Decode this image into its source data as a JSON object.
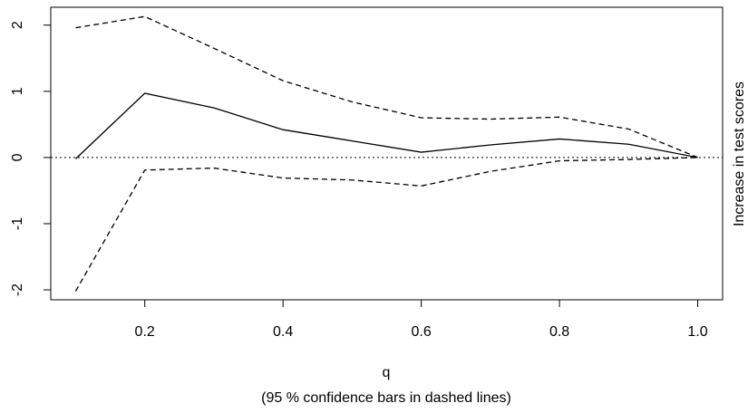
{
  "chart_data": {
    "type": "line",
    "x_label": "q",
    "subtitle": "(95 % confidence bars in dashed lines)",
    "y_label": "Increase in test scores",
    "x": [
      0.1,
      0.2,
      0.3,
      0.4,
      0.5,
      0.6,
      0.7,
      0.8,
      0.9,
      1.0
    ],
    "series": [
      {
        "color": "#000000",
        "line_style": "solid",
        "values": [
          -0.02,
          0.97,
          0.75,
          0.42,
          0.25,
          0.08,
          0.19,
          0.28,
          0.2,
          0
        ]
      },
      {
        "color": "#000000",
        "line_style": "dashed",
        "values": [
          1.96,
          2.13,
          1.65,
          1.16,
          0.84,
          0.6,
          0.58,
          0.61,
          0.43,
          0
        ]
      },
      {
        "color": "#000000",
        "line_style": "dashed",
        "values": [
          -2.02,
          -0.19,
          -0.16,
          -0.31,
          -0.34,
          -0.43,
          -0.21,
          -0.05,
          -0.03,
          0
        ]
      }
    ],
    "hline": {
      "value": 0,
      "line_style": "dotted"
    },
    "xlim": [
      0.064,
      1.036
    ],
    "ylim": [
      -2.15,
      2.27
    ],
    "xticks": [
      0.2,
      0.4,
      0.6,
      0.8,
      {
        "value": 1,
        "label": "1.0"
      }
    ],
    "yticks": [
      -2,
      -1,
      0,
      1,
      2
    ]
  }
}
